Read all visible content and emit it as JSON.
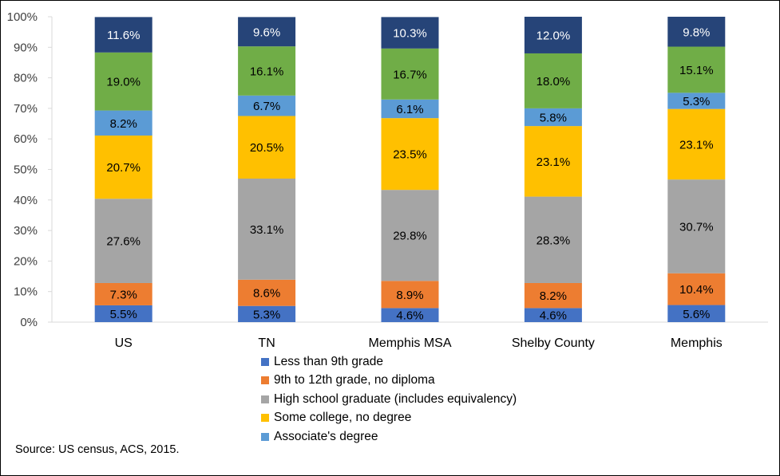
{
  "chart_data": {
    "type": "bar",
    "stacked": true,
    "categories": [
      "US",
      "TN",
      "Memphis MSA",
      "Shelby County",
      "Memphis"
    ],
    "series": [
      {
        "name": "Less than 9th grade",
        "color": "#4472c4",
        "values": [
          5.5,
          5.3,
          4.6,
          4.6,
          5.6
        ],
        "labels": [
          "5.5%",
          "5.3%",
          "4.6%",
          "4.6%",
          "5.6%"
        ]
      },
      {
        "name": "9th to 12th grade, no diploma",
        "color": "#ed7d31",
        "values": [
          7.3,
          8.6,
          8.9,
          8.2,
          10.4
        ],
        "labels": [
          "7.3%",
          "8.6%",
          "8.9%",
          "8.2%",
          "10.4%"
        ]
      },
      {
        "name": "High school graduate (includes equivalency)",
        "color": "#a5a5a5",
        "values": [
          27.6,
          33.1,
          29.8,
          28.3,
          30.7
        ],
        "labels": [
          "27.6%",
          "33.1%",
          "29.8%",
          "28.3%",
          "30.7%"
        ]
      },
      {
        "name": "Some college, no degree",
        "color": "#ffc000",
        "values": [
          20.7,
          20.5,
          23.5,
          23.1,
          23.1
        ],
        "labels": [
          "20.7%",
          "20.5%",
          "23.5%",
          "23.1%",
          "23.1%"
        ]
      },
      {
        "name": "Associate's degree",
        "color": "#5b9bd5",
        "values": [
          8.2,
          6.7,
          6.1,
          5.8,
          5.3
        ],
        "labels": [
          "8.2%",
          "6.7%",
          "6.1%",
          "5.8%",
          "5.3%"
        ]
      },
      {
        "color": "#70ad47",
        "values": [
          19.0,
          16.1,
          16.7,
          18.0,
          15.1
        ],
        "labels": [
          "19.0%",
          "16.1%",
          "16.7%",
          "18.0%",
          "15.1%"
        ]
      },
      {
        "color": "#264478",
        "values": [
          11.6,
          9.6,
          10.3,
          12.0,
          9.8
        ],
        "labels": [
          "11.6%",
          "9.6%",
          "10.3%",
          "12.0%",
          "9.8%"
        ]
      }
    ],
    "ylim": [
      0,
      100
    ],
    "yticks": [
      "0%",
      "10%",
      "20%",
      "30%",
      "40%",
      "50%",
      "60%",
      "70%",
      "80%",
      "90%",
      "100%"
    ],
    "grid": false,
    "legend_position": "bottom"
  },
  "legend": {
    "items": [
      {
        "label": "Less than 9th grade",
        "color": "#4472c4"
      },
      {
        "label": "9th to 12th grade, no diploma",
        "color": "#ed7d31"
      },
      {
        "label": "High school graduate (includes equivalency)",
        "color": "#a5a5a5"
      },
      {
        "label": "Some college, no degree",
        "color": "#ffc000"
      },
      {
        "label": "Associate's degree",
        "color": "#5b9bd5"
      }
    ]
  },
  "source": "Source: US census, ACS, 2015."
}
